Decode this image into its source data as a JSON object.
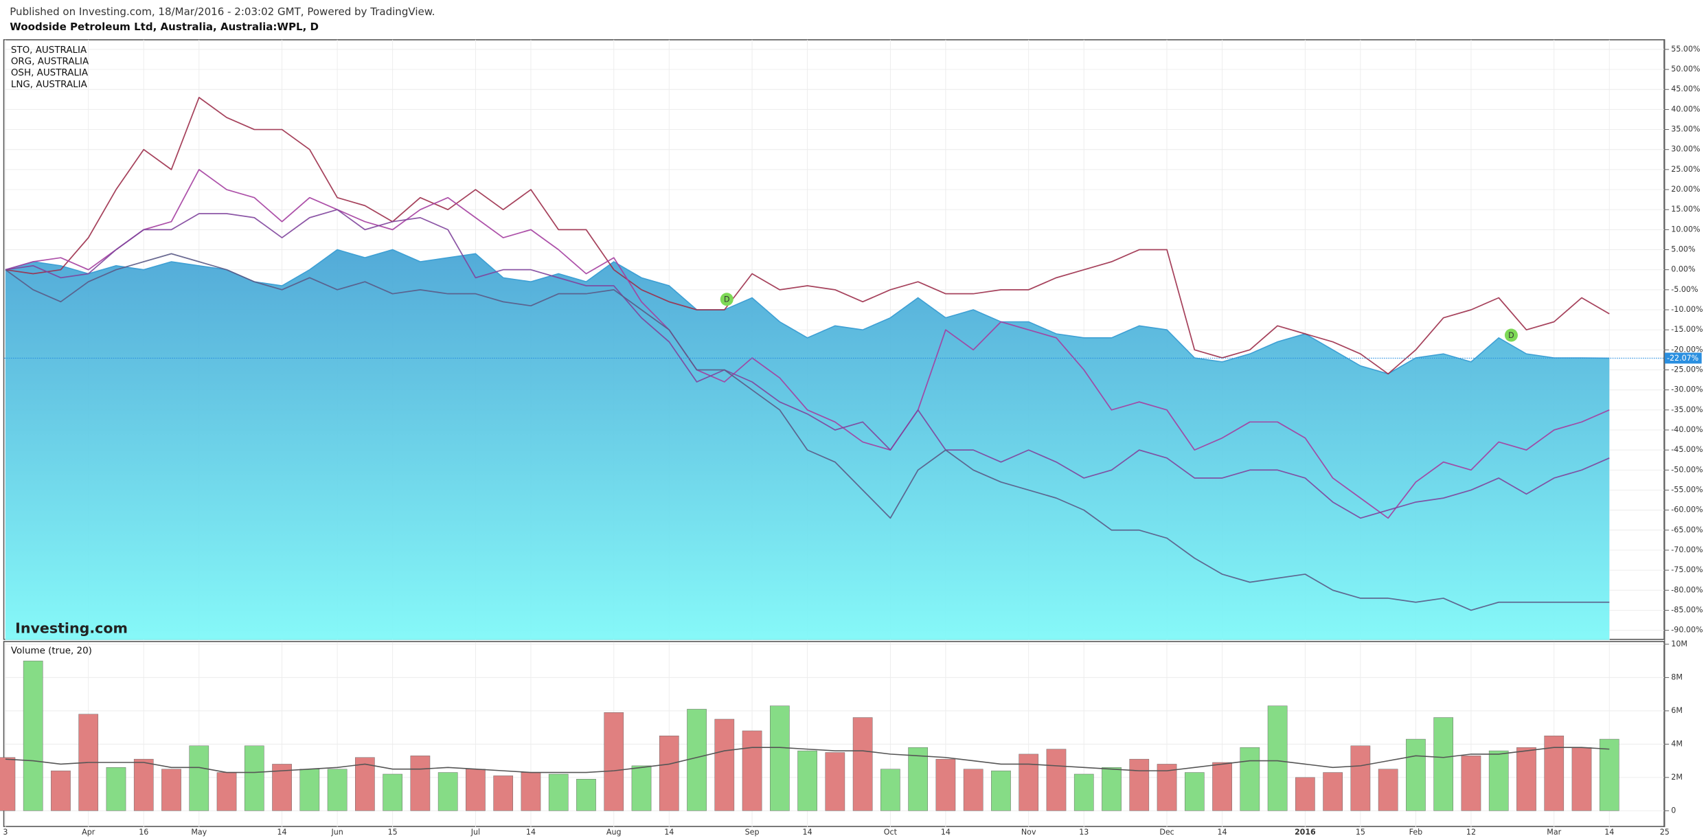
{
  "header": {
    "published": "Published on Investing.com, 18/Mar/2016 - 2:03:02 GMT, Powered by TradingView.",
    "symbol": "Woodside Petroleum Ltd, Australia, Australia:WPL, D",
    "watermark": "Investing.com"
  },
  "chart_data": [
    {
      "type": "line",
      "area_color": "#3d9fd4",
      "grid": true,
      "dividend_markers": [
        "D",
        "D"
      ],
      "categories": [
        "3",
        null,
        null,
        "Apr",
        null,
        "16",
        null,
        "May",
        null,
        null,
        "14",
        null,
        "Jun",
        null,
        "15",
        null,
        null,
        "Jul",
        null,
        "14",
        null,
        null,
        "Aug",
        null,
        "14",
        null,
        null,
        "Sep",
        null,
        "14",
        null,
        null,
        "Oct",
        null,
        "14",
        null,
        null,
        "Nov",
        null,
        "13",
        null,
        null,
        "Dec",
        null,
        "14",
        null,
        null,
        "2016",
        null,
        "15",
        null,
        "Feb",
        null,
        "12",
        null,
        null,
        "Mar",
        null,
        "14",
        null,
        "25"
      ],
      "values": [
        0,
        2,
        1,
        -1,
        1,
        0,
        2,
        1,
        0,
        -3,
        -4,
        0,
        5,
        3,
        5,
        2,
        3,
        4,
        -2,
        -3,
        -1,
        -3,
        2,
        -2,
        -4,
        -10,
        -10,
        -7,
        -13,
        -17,
        -14,
        -15,
        -12,
        -7,
        -12,
        -10,
        -13,
        -13,
        -16,
        -17,
        -17,
        -14,
        -15,
        -22,
        -23,
        -21,
        -18,
        -16,
        -20,
        -24,
        -26,
        -22,
        -21,
        -23,
        -17,
        -21,
        -22,
        -22,
        -22.07,
        null,
        null
      ],
      "last_value": {
        "value": -22.07,
        "label": "-22.07%"
      },
      "series": [
        {
          "name": "STO, AUSTRALIA",
          "color": "#9c2e4a",
          "values": [
            0,
            -1,
            0,
            8,
            20,
            30,
            25,
            43,
            38,
            35,
            35,
            30,
            18,
            16,
            12,
            18,
            15,
            20,
            15,
            20,
            10,
            10,
            0,
            -5,
            -8,
            -10,
            -10,
            -1,
            -5,
            -4,
            -5,
            -8,
            -5,
            -3,
            -6,
            -6,
            -5,
            -5,
            -2,
            0,
            2,
            5,
            5,
            -20,
            -22,
            -20,
            -14,
            -16,
            -18,
            -21,
            -26,
            -20,
            -12,
            -10,
            -7,
            -15,
            -13,
            -7,
            -11,
            null,
            null
          ]
        },
        {
          "name": "ORG, AUSTRALIA",
          "color": "#a43ea0",
          "values": [
            0,
            2,
            3,
            0,
            5,
            10,
            12,
            25,
            20,
            18,
            12,
            18,
            15,
            12,
            10,
            15,
            18,
            13,
            8,
            10,
            5,
            -1,
            3,
            -8,
            -15,
            -25,
            -28,
            -22,
            -27,
            -35,
            -38,
            -43,
            -45,
            -35,
            -15,
            -20,
            -13,
            -15,
            -17,
            -25,
            -35,
            -33,
            -35,
            -45,
            -42,
            -38,
            -38,
            -42,
            -52,
            -57,
            -62,
            -53,
            -48,
            -50,
            -43,
            -45,
            -40,
            -38,
            -35,
            null,
            null
          ]
        },
        {
          "name": "OSH, AUSTRALIA",
          "color": "#80449c",
          "values": [
            0,
            1,
            -2,
            -1,
            5,
            10,
            10,
            14,
            14,
            13,
            8,
            13,
            15,
            10,
            12,
            13,
            10,
            -2,
            0,
            0,
            -2,
            -4,
            -4,
            -12,
            -18,
            -28,
            -25,
            -28,
            -33,
            -36,
            -40,
            -38,
            -45,
            -35,
            -45,
            -45,
            -48,
            -45,
            -48,
            -52,
            -50,
            -45,
            -47,
            -52,
            -52,
            -50,
            -50,
            -52,
            -58,
            -62,
            -60,
            -58,
            -57,
            -55,
            -52,
            -56,
            -52,
            -50,
            -47,
            null,
            null
          ]
        },
        {
          "name": "LNG, AUSTRALIA",
          "color": "#5a5a86",
          "values": [
            0,
            -5,
            -8,
            -3,
            0,
            2,
            4,
            2,
            0,
            -3,
            -5,
            -2,
            -5,
            -3,
            -6,
            -5,
            -6,
            -6,
            -8,
            -9,
            -6,
            -6,
            -5,
            -10,
            -15,
            -25,
            -25,
            -30,
            -35,
            -45,
            -48,
            -55,
            -62,
            -50,
            -45,
            -50,
            -53,
            -55,
            -57,
            -60,
            -65,
            -65,
            -67,
            -72,
            -76,
            -78,
            -77,
            -76,
            -80,
            -82,
            -82,
            -83,
            -82,
            -85,
            -83,
            -83,
            -83,
            -83,
            -83,
            null,
            null
          ]
        }
      ],
      "ylim": [
        -92.4,
        57.4
      ],
      "yticks": [
        {
          "value": -90,
          "label": "-90.00%"
        },
        {
          "value": -85,
          "label": "-85.00%"
        },
        {
          "value": -80,
          "label": "-80.00%"
        },
        {
          "value": -75,
          "label": "-75.00%"
        },
        {
          "value": -70,
          "label": "-70.00%"
        },
        {
          "value": -65,
          "label": "-65.00%"
        },
        {
          "value": -60,
          "label": "-60.00%"
        },
        {
          "value": -55,
          "label": "-55.00%"
        },
        {
          "value": -50,
          "label": "-50.00%"
        },
        {
          "value": -45,
          "label": "-45.00%"
        },
        {
          "value": -40,
          "label": "-40.00%"
        },
        {
          "value": -35,
          "label": "-35.00%"
        },
        {
          "value": -30,
          "label": "-30.00%"
        },
        {
          "value": -25,
          "label": "-25.00%"
        },
        {
          "value": -20,
          "label": "-20.00%"
        },
        {
          "value": -15,
          "label": "-15.00%"
        },
        {
          "value": -10,
          "label": "-10.00%"
        },
        {
          "value": -5,
          "label": "-5.00%"
        },
        {
          "value": 0,
          "label": "0.00%"
        },
        {
          "value": 5,
          "label": "5.00%"
        },
        {
          "value": 10,
          "label": "10.00%"
        },
        {
          "value": 15,
          "label": "15.00%"
        },
        {
          "value": 20,
          "label": "20.00%"
        },
        {
          "value": 25,
          "label": "25.00%"
        },
        {
          "value": 30,
          "label": "30.00%"
        },
        {
          "value": 35,
          "label": "35.00%"
        },
        {
          "value": 40,
          "label": "40.00%"
        },
        {
          "value": 45,
          "label": "45.00%"
        },
        {
          "value": 50,
          "label": "50.00%"
        },
        {
          "value": 55,
          "label": "55.00%"
        }
      ]
    },
    {
      "type": "bar",
      "title": "Volume (true, 20)",
      "grid": true,
      "values": [
        3200000,
        9000000,
        2400000,
        5800000,
        2600000,
        3100000,
        2500000,
        3900000,
        2300000,
        3900000,
        2800000,
        2500000,
        2500000,
        3200000,
        2200000,
        3300000,
        2300000,
        2500000,
        2100000,
        2300000,
        2200000,
        1900000,
        5900000,
        2700000,
        4500000,
        6100000,
        5500000,
        4800000,
        6300000,
        3600000,
        3500000,
        5600000,
        2500000,
        3800000,
        3100000,
        2500000,
        2400000,
        3400000,
        3700000,
        2200000,
        2600000,
        3100000,
        2800000,
        2300000,
        2900000,
        3800000,
        6300000,
        2000000,
        2300000,
        3900000,
        2500000,
        4300000,
        5600000,
        3300000,
        3600000,
        3800000,
        4500000,
        3800000,
        4300000,
        null,
        null
      ],
      "colors": [
        "#e08080",
        "#86dc86",
        "#e08080",
        "#e08080",
        "#86dc86",
        "#e08080",
        "#e08080",
        "#86dc86",
        "#e08080",
        "#86dc86",
        "#e08080",
        "#86dc86",
        "#86dc86",
        "#e08080",
        "#86dc86",
        "#e08080",
        "#86dc86",
        "#e08080",
        "#e08080",
        "#e08080",
        "#86dc86",
        "#86dc86",
        "#e08080",
        "#86dc86",
        "#e08080",
        "#86dc86",
        "#e08080",
        "#e08080",
        "#86dc86",
        "#86dc86",
        "#e08080",
        "#e08080",
        "#86dc86",
        "#86dc86",
        "#e08080",
        "#e08080",
        "#86dc86",
        "#e08080",
        "#e08080",
        "#86dc86",
        "#86dc86",
        "#e08080",
        "#e08080",
        "#86dc86",
        "#e08080",
        "#86dc86",
        "#86dc86",
        "#e08080",
        "#e08080",
        "#e08080",
        "#e08080",
        "#86dc86",
        "#86dc86",
        "#e08080",
        "#86dc86",
        "#e08080",
        "#e08080",
        "#e08080",
        "#86dc86",
        null,
        null
      ],
      "ma_color": "#555555",
      "ma_values": [
        3100000,
        3000000,
        2800000,
        2900000,
        2900000,
        2900000,
        2600000,
        2600000,
        2300000,
        2300000,
        2400000,
        2500000,
        2600000,
        2800000,
        2500000,
        2500000,
        2600000,
        2500000,
        2400000,
        2300000,
        2300000,
        2300000,
        2400000,
        2600000,
        2800000,
        3200000,
        3600000,
        3800000,
        3800000,
        3700000,
        3600000,
        3600000,
        3400000,
        3300000,
        3200000,
        3000000,
        2800000,
        2800000,
        2700000,
        2600000,
        2500000,
        2400000,
        2400000,
        2600000,
        2800000,
        3000000,
        3000000,
        2800000,
        2600000,
        2700000,
        3000000,
        3300000,
        3200000,
        3400000,
        3400000,
        3600000,
        3800000,
        3800000,
        3700000,
        null,
        null
      ],
      "ylim": [
        -980000,
        10130000
      ],
      "yticks": [
        0,
        {
          "value": 2000000,
          "label": "2M"
        },
        {
          "value": 4000000,
          "label": "4M"
        },
        {
          "value": 6000000,
          "label": "6M"
        },
        {
          "value": 8000000,
          "label": "8M"
        },
        {
          "value": 10000000,
          "label": "10M"
        }
      ]
    }
  ]
}
